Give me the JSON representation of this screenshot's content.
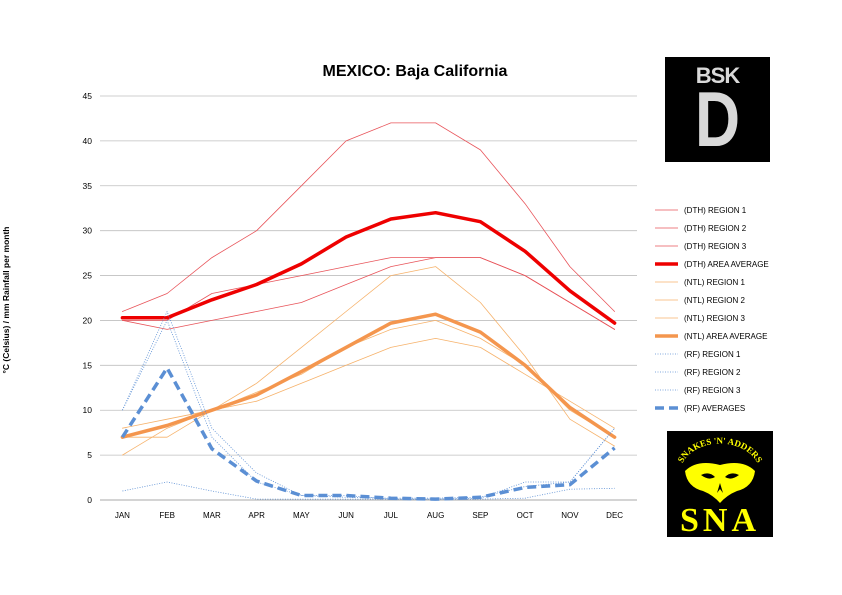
{
  "chart_data": {
    "type": "line",
    "title": "MEXICO: Baja California",
    "ylabel": "°C (Celsius) / mm Rainfall per month",
    "xlabel": "",
    "categories": [
      "JAN",
      "FEB",
      "MAR",
      "APR",
      "MAY",
      "JUN",
      "JUL",
      "AUG",
      "SEP",
      "OCT",
      "NOV",
      "DEC"
    ],
    "ylim": [
      0,
      45
    ],
    "yticks": [
      0,
      5,
      10,
      15,
      20,
      25,
      30,
      35,
      40,
      45
    ],
    "grid": true,
    "legend": "right",
    "series": [
      {
        "name": "(DTH) REGION 1",
        "color": "#e8545a",
        "width": 0.8,
        "dash": "",
        "values": [
          21,
          23,
          27,
          30,
          35,
          40,
          42,
          42,
          39,
          33,
          26,
          21
        ]
      },
      {
        "name": "(DTH) REGION 2",
        "color": "#e8545a",
        "width": 0.8,
        "dash": "",
        "values": [
          20,
          19,
          20,
          21,
          22,
          24,
          26,
          27,
          27,
          25,
          22,
          19
        ]
      },
      {
        "name": "(DTH) REGION 3",
        "color": "#e8545a",
        "width": 0.8,
        "dash": "",
        "values": [
          20,
          20,
          23,
          24,
          25,
          26,
          27,
          27,
          27,
          25,
          22,
          19
        ]
      },
      {
        "name": "(DTH) AREA AVERAGE",
        "color": "#ee0000",
        "width": 3.5,
        "dash": "",
        "values": [
          20.3,
          20.3,
          22.3,
          24,
          26.3,
          29.3,
          31.3,
          32,
          31,
          27.7,
          23.3,
          19.7
        ]
      },
      {
        "name": "(NTL) REGION 1",
        "color": "#f6b26b",
        "width": 0.8,
        "dash": "",
        "values": [
          5,
          8,
          10,
          13,
          17,
          21,
          25,
          26,
          22,
          16,
          9,
          6
        ]
      },
      {
        "name": "(NTL) REGION 2",
        "color": "#f6b26b",
        "width": 0.8,
        "dash": "",
        "values": [
          8,
          9,
          10,
          11,
          13,
          15,
          17,
          18,
          17,
          14,
          11,
          8
        ]
      },
      {
        "name": "(NTL) REGION 3",
        "color": "#f6b26b",
        "width": 0.8,
        "dash": "",
        "values": [
          7,
          7,
          10,
          12,
          14,
          17,
          19,
          20,
          18,
          15,
          10,
          7
        ]
      },
      {
        "name": "(NTL) AREA AVERAGE",
        "color": "#f4964e",
        "width": 3.5,
        "dash": "",
        "values": [
          7,
          8.3,
          10,
          11.7,
          14.3,
          17,
          19.7,
          20.7,
          18.7,
          15,
          10.3,
          7
        ]
      },
      {
        "name": "(RF) REGION 1",
        "color": "#5b8fd4",
        "width": 0.8,
        "dash": "1,1.5",
        "values": [
          10,
          21,
          8,
          3,
          0.5,
          0.3,
          0.2,
          0.2,
          0.3,
          1.5,
          2,
          8
        ]
      },
      {
        "name": "(RF) REGION 2",
        "color": "#5b8fd4",
        "width": 0.8,
        "dash": "1,1.5",
        "values": [
          1,
          2,
          1,
          0.1,
          0.1,
          0.1,
          0.1,
          0.1,
          0.1,
          0.2,
          1.2,
          1.3
        ]
      },
      {
        "name": "(RF) REGION 3",
        "color": "#5b8fd4",
        "width": 0.8,
        "dash": "1,1.5",
        "values": [
          10,
          20,
          7,
          2,
          0.5,
          0.5,
          0.1,
          0.1,
          0.2,
          2,
          2,
          8
        ]
      },
      {
        "name": "(RF) AVERAGES",
        "color": "#5b8fd4",
        "width": 3.5,
        "dash": "9,5",
        "values": [
          7,
          14.7,
          5.7,
          2.1,
          0.5,
          0.5,
          0.2,
          0.1,
          0.3,
          1.4,
          1.7,
          5.8
        ]
      }
    ]
  },
  "logos": {
    "bsk_text": "BSK",
    "bsk_letter": "D",
    "sna_top_text": "SNAKES 'N' ADDERS",
    "sna_bottom_text": "SNA"
  }
}
